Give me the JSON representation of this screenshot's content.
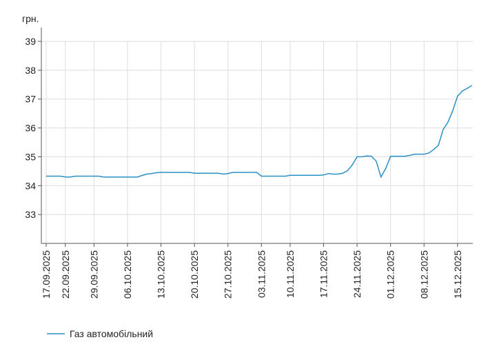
{
  "chart_data": {
    "type": "line",
    "y_label": "грн.",
    "categories": [
      "17.09.2025",
      null,
      null,
      null,
      "22.09.2025",
      null,
      null,
      null,
      null,
      null,
      "29.09.2025",
      null,
      null,
      null,
      null,
      null,
      null,
      "06.10.2025",
      null,
      null,
      null,
      null,
      null,
      null,
      "13.10.2025",
      null,
      null,
      null,
      null,
      null,
      null,
      "20.10.2025",
      null,
      null,
      null,
      null,
      null,
      null,
      "27.10.2025",
      null,
      null,
      null,
      null,
      null,
      null,
      "03.11.2025",
      null,
      null,
      null,
      null,
      null,
      "10.11.2025",
      null,
      null,
      null,
      null,
      null,
      null,
      "17.11.2025",
      null,
      null,
      null,
      null,
      null,
      null,
      "24.11.2025",
      null,
      null,
      null,
      null,
      null,
      null,
      "01.12.2025",
      null,
      null,
      null,
      null,
      null,
      null,
      "08.12.2025",
      null,
      null,
      null,
      null,
      null,
      null,
      "15.12.2025",
      null,
      null,
      null
    ],
    "series": [
      {
        "name": "Газ автомобільний",
        "color": "#2a8fc4",
        "values": [
          34.33,
          34.33,
          34.33,
          34.33,
          34.3,
          34.3,
          34.33,
          34.33,
          34.33,
          34.33,
          34.33,
          34.33,
          34.3,
          34.3,
          34.3,
          34.3,
          34.3,
          34.3,
          34.3,
          34.3,
          34.35,
          34.4,
          34.42,
          34.45,
          34.46,
          34.46,
          34.46,
          34.46,
          34.46,
          34.46,
          34.46,
          34.43,
          34.43,
          34.43,
          34.43,
          34.43,
          34.43,
          34.4,
          34.42,
          34.46,
          34.46,
          34.46,
          34.46,
          34.46,
          34.46,
          34.33,
          34.33,
          34.33,
          34.33,
          34.33,
          34.33,
          34.36,
          34.36,
          34.36,
          34.36,
          34.36,
          34.36,
          34.36,
          34.37,
          34.42,
          34.4,
          34.4,
          34.43,
          34.52,
          34.72,
          35.0,
          35.0,
          35.03,
          35.02,
          34.85,
          34.3,
          34.6,
          35.02,
          35.02,
          35.02,
          35.02,
          35.05,
          35.09,
          35.09,
          35.09,
          35.13,
          35.25,
          35.4,
          35.95,
          36.2,
          36.6,
          37.1,
          37.28,
          37.37,
          37.47
        ]
      }
    ],
    "ylim": [
      32,
      39
    ],
    "yticks": [
      33,
      34,
      35,
      36,
      37,
      38,
      39
    ],
    "grid": true,
    "legend": "bottom-left"
  }
}
